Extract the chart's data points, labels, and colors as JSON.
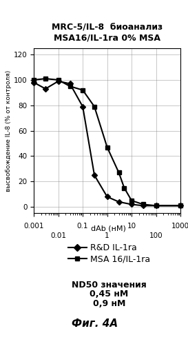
{
  "title": "MRC-5/IL-8  биоанализ\nMSA16/IL-1ra 0% MSA",
  "xlabel": "dAb (нМ)",
  "ylabel": "высвобождение IL-8 (% от контроля)",
  "ylim": [
    -5,
    125
  ],
  "yticks": [
    0,
    20,
    40,
    60,
    80,
    100,
    120
  ],
  "xtick_vals_top": [
    0.001,
    0.1,
    10,
    1000
  ],
  "xtick_labels_top": [
    "0.001",
    "0.1",
    "10",
    "1000"
  ],
  "xtick_vals_bot": [
    0.01,
    1,
    100
  ],
  "xtick_labels_bot": [
    "0.01",
    "1",
    "100"
  ],
  "series1_name": "R&D IL-1ra",
  "series1_x": [
    0.001,
    0.003,
    0.01,
    0.03,
    0.1,
    0.3,
    1.0,
    3.0,
    10.0,
    30.0,
    100.0,
    1000.0
  ],
  "series1_y": [
    98,
    93,
    99,
    97,
    79,
    25,
    8,
    4,
    2,
    1,
    1,
    1
  ],
  "series1_color": "#000000",
  "series1_marker": "D",
  "series2_name": "MSA 16/IL-1ra",
  "series2_x": [
    0.001,
    0.003,
    0.01,
    0.03,
    0.1,
    0.3,
    1.0,
    3.0,
    5.0,
    10.0,
    30.0,
    100.0,
    1000.0
  ],
  "series2_y": [
    100,
    101,
    100,
    95,
    92,
    79,
    47,
    27,
    15,
    5,
    2,
    1,
    1
  ],
  "series2_color": "#000000",
  "series2_marker": "s",
  "legend_entries": [
    "R&D IL-1ra",
    "MSA 16/IL-1ra"
  ],
  "annotation_title": "ND50 значения",
  "annotation_line1": "0,45 нМ",
  "annotation_line2": "0,9 нМ",
  "fig_label": "Фиг. 4A",
  "title_fontsize": 9,
  "axis_label_fontsize": 8,
  "tick_fontsize": 7.5,
  "legend_fontsize": 9,
  "annotation_fontsize": 9,
  "fig_label_fontsize": 11
}
